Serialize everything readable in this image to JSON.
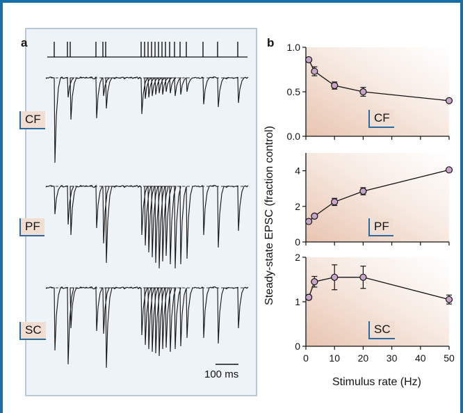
{
  "panel_a": {
    "letter": "a",
    "labels": [
      "CF",
      "PF",
      "SC"
    ],
    "scalebar": "100 ms"
  },
  "panel_b": {
    "letter": "b",
    "ylabel": "Steady-state EPSC (fraction control)",
    "xlabel": "Stimulus rate (Hz)"
  },
  "colors": {
    "frame": "#1a6ea8",
    "marker_fill": "#c9a4c9",
    "tag_bg": "#f2ddd2",
    "panel_a_bg": "#eef3f8"
  },
  "chart_data": [
    {
      "type": "line",
      "label": "CF",
      "x": [
        1,
        3,
        10,
        20,
        50
      ],
      "y": [
        0.86,
        0.73,
        0.57,
        0.5,
        0.4
      ],
      "yerr": [
        0.02,
        0.05,
        0.04,
        0.05,
        0.02
      ],
      "ylim": [
        0,
        1
      ],
      "yticks": [
        0.0,
        0.5,
        1.0
      ],
      "ytick_labels": [
        "0.0",
        "0.5",
        "1.0"
      ],
      "xlim": [
        0,
        50
      ]
    },
    {
      "type": "line",
      "label": "PF",
      "x": [
        1,
        3,
        10,
        20,
        50
      ],
      "y": [
        1.15,
        1.45,
        2.25,
        2.85,
        4.05
      ],
      "yerr": [
        0.1,
        0.1,
        0.2,
        0.2,
        0.1
      ],
      "ylim": [
        0,
        5
      ],
      "yticks": [
        0,
        2,
        4
      ],
      "ytick_labels": [
        "0",
        "2",
        "4"
      ],
      "xlim": [
        0,
        50
      ]
    },
    {
      "type": "line",
      "label": "SC",
      "x": [
        1,
        3,
        10,
        20,
        50
      ],
      "y": [
        1.1,
        1.45,
        1.55,
        1.55,
        1.05
      ],
      "yerr": [
        0.05,
        0.12,
        0.28,
        0.25,
        0.1
      ],
      "ylim": [
        0,
        2
      ],
      "yticks": [
        0,
        1,
        2
      ],
      "ytick_labels": [
        "0",
        "1",
        "2"
      ],
      "xlim": [
        0,
        50
      ],
      "xticks": [
        0,
        10,
        20,
        30,
        40,
        50
      ],
      "xtick_labels": [
        "0",
        "10",
        "20",
        "30",
        "40",
        "50"
      ]
    }
  ]
}
